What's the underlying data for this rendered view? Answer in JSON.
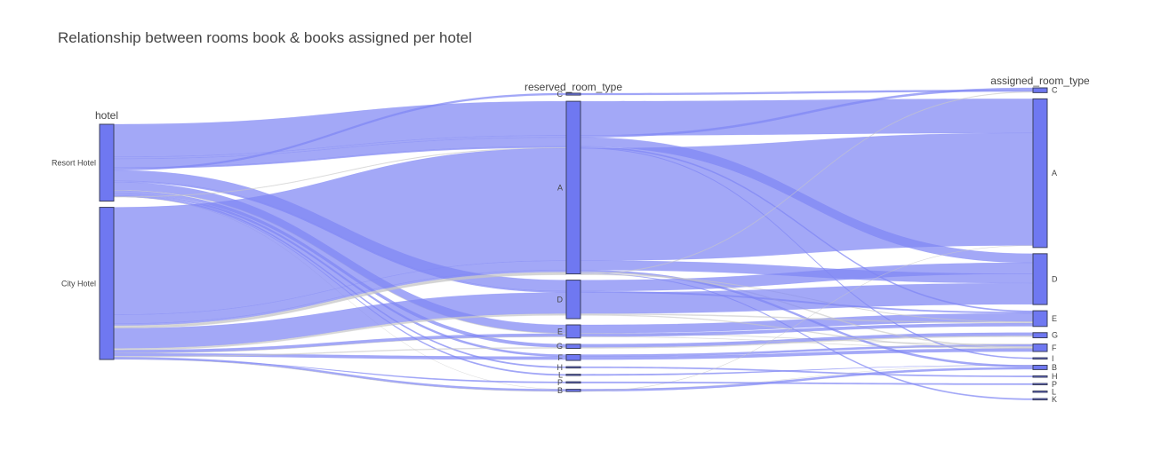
{
  "chart_data": {
    "type": "parallel_categories",
    "title": "Relationship between rooms book & books assigned per hotel",
    "colors": {
      "bar": "#6f78f1",
      "bar_stroke": "#3b3f5c",
      "ribbon": "#7f87f4",
      "ribbon_thin": "#c8c8c8"
    },
    "dimensions": [
      {
        "label": "hotel",
        "categories": [
          {
            "label": "Resort Hotel",
            "count": 40060
          },
          {
            "label": "City Hotel",
            "count": 79330
          }
        ]
      },
      {
        "label": "reserved_room_type",
        "categories": [
          {
            "label": "C",
            "count": 932
          },
          {
            "label": "A",
            "count": 85994
          },
          {
            "label": "D",
            "count": 19201
          },
          {
            "label": "E",
            "count": 6535
          },
          {
            "label": "G",
            "count": 2094
          },
          {
            "label": "F",
            "count": 2897
          },
          {
            "label": "H",
            "count": 601
          },
          {
            "label": "L",
            "count": 6
          },
          {
            "label": "P",
            "count": 12
          },
          {
            "label": "B",
            "count": 1118
          }
        ]
      },
      {
        "label": "assigned_room_type",
        "categories": [
          {
            "label": "C",
            "count": 2375
          },
          {
            "label": "A",
            "count": 74053
          },
          {
            "label": "D",
            "count": 25322
          },
          {
            "label": "E",
            "count": 7806
          },
          {
            "label": "G",
            "count": 2553
          },
          {
            "label": "F",
            "count": 3751
          },
          {
            "label": "I",
            "count": 363
          },
          {
            "label": "B",
            "count": 2163
          },
          {
            "label": "H",
            "count": 712
          },
          {
            "label": "P",
            "count": 12
          },
          {
            "label": "L",
            "count": 1
          },
          {
            "label": "K",
            "count": 279
          }
        ]
      }
    ],
    "flows": [
      {
        "path": [
          "Resort Hotel",
          "A",
          "A"
        ],
        "count": 17000
      },
      {
        "path": [
          "Resort Hotel",
          "A",
          "C"
        ],
        "count": 1000
      },
      {
        "path": [
          "Resort Hotel",
          "A",
          "D"
        ],
        "count": 4500
      },
      {
        "path": [
          "Resort Hotel",
          "A",
          "E"
        ],
        "count": 600
      },
      {
        "path": [
          "Resort Hotel",
          "C",
          "C"
        ],
        "count": 900
      },
      {
        "path": [
          "Resort Hotel",
          "D",
          "D"
        ],
        "count": 5500
      },
      {
        "path": [
          "Resort Hotel",
          "D",
          "E"
        ],
        "count": 700
      },
      {
        "path": [
          "Resort Hotel",
          "E",
          "E"
        ],
        "count": 4100
      },
      {
        "path": [
          "Resort Hotel",
          "E",
          "F"
        ],
        "count": 250
      },
      {
        "path": [
          "Resort Hotel",
          "G",
          "G"
        ],
        "count": 1600
      },
      {
        "path": [
          "Resort Hotel",
          "F",
          "F"
        ],
        "count": 1000
      },
      {
        "path": [
          "Resort Hotel",
          "H",
          "H"
        ],
        "count": 590
      },
      {
        "path": [
          "Resort Hotel",
          "L",
          "B"
        ],
        "count": 6
      },
      {
        "path": [
          "Resort Hotel",
          "B",
          "B"
        ],
        "count": 3
      },
      {
        "path": [
          "Resort Hotel",
          "A",
          "I"
        ],
        "count": 300
      },
      {
        "path": [
          "City Hotel",
          "A",
          "A"
        ],
        "count": 56000
      },
      {
        "path": [
          "City Hotel",
          "A",
          "D"
        ],
        "count": 4700
      },
      {
        "path": [
          "City Hotel",
          "A",
          "B"
        ],
        "count": 1000
      },
      {
        "path": [
          "City Hotel",
          "A",
          "F"
        ],
        "count": 500
      },
      {
        "path": [
          "City Hotel",
          "A",
          "K"
        ],
        "count": 270
      },
      {
        "path": [
          "City Hotel",
          "A",
          "C"
        ],
        "count": 300
      },
      {
        "path": [
          "City Hotel",
          "A",
          "E"
        ],
        "count": 300
      },
      {
        "path": [
          "City Hotel",
          "D",
          "D"
        ],
        "count": 10500
      },
      {
        "path": [
          "City Hotel",
          "D",
          "E"
        ],
        "count": 500
      },
      {
        "path": [
          "City Hotel",
          "D",
          "F"
        ],
        "count": 400
      },
      {
        "path": [
          "City Hotel",
          "E",
          "E"
        ],
        "count": 1500
      },
      {
        "path": [
          "City Hotel",
          "E",
          "F"
        ],
        "count": 150
      },
      {
        "path": [
          "City Hotel",
          "F",
          "F"
        ],
        "count": 1500
      },
      {
        "path": [
          "City Hotel",
          "G",
          "G"
        ],
        "count": 480
      },
      {
        "path": [
          "City Hotel",
          "B",
          "B"
        ],
        "count": 1000
      },
      {
        "path": [
          "City Hotel",
          "B",
          "A"
        ],
        "count": 110
      },
      {
        "path": [
          "City Hotel",
          "P",
          "P"
        ],
        "count": 12
      }
    ]
  }
}
